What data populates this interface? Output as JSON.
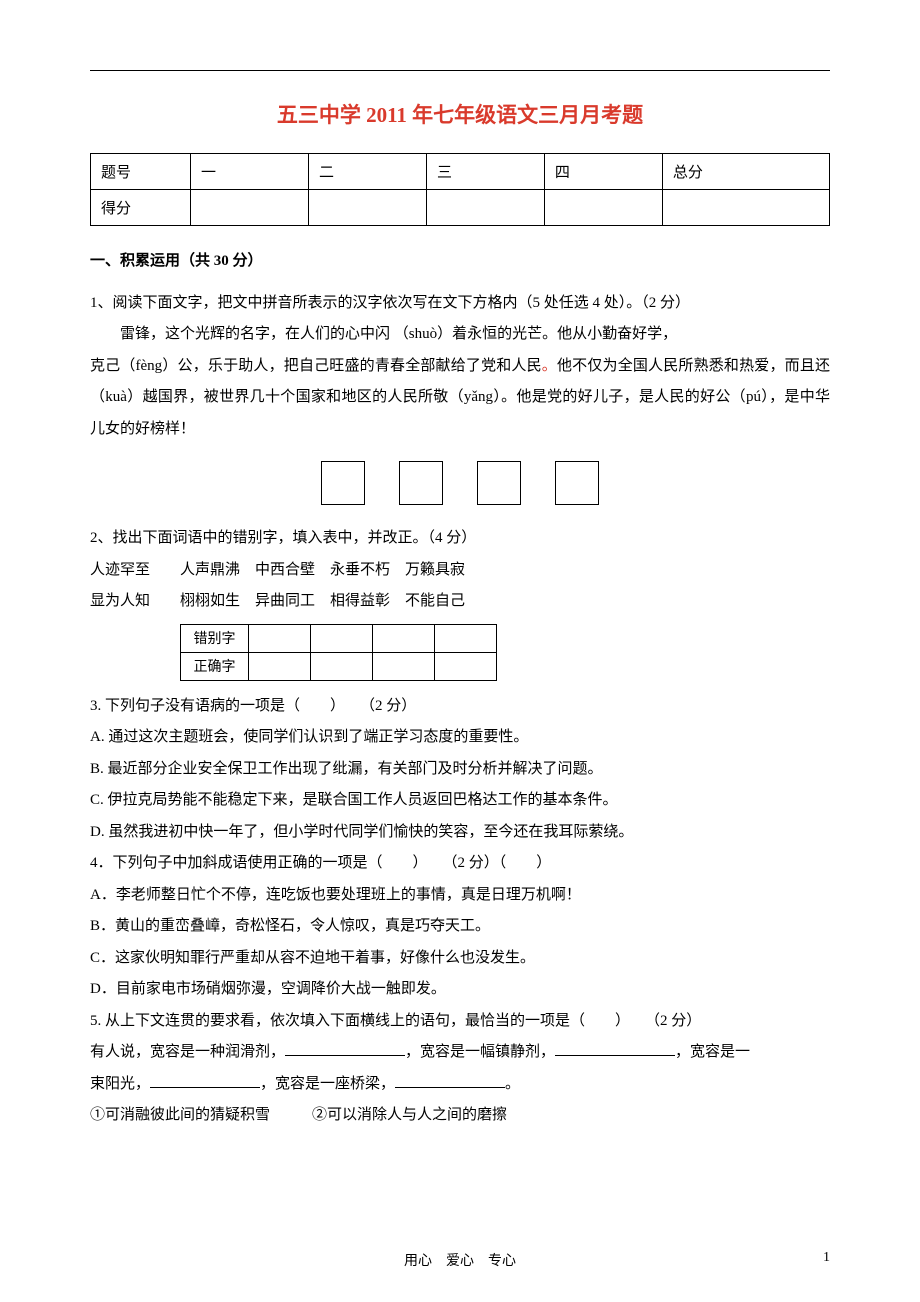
{
  "title": "五三中学 2011 年七年级语文三月月考题",
  "scoreTable": {
    "rowLabels": [
      "题号",
      "得分"
    ],
    "columns": [
      "一",
      "二",
      "三",
      "四",
      "总分"
    ]
  },
  "section1": {
    "heading": "一、积累运用（共 30 分）",
    "q1": {
      "prompt": "1、阅读下面文字，把文中拼音所表示的汉字依次写在文下方格内（5 处任选 4 处）。（2 分）",
      "para1a": "雷锋，这个光辉的名字，在人们的心中闪 （shuò）着永恒的光芒。他从小勤奋好学，",
      "para1b": "克己（fèng）公，乐于助人，把自己旺盛的青春全部献给了党和人民",
      "para1b_after": "他不仅为全国人民所熟悉和热爱，而且还（kuà）越国界，被世界几十个国家和地区的人民所敬（yǎng）。他是党的好儿子，是人民的好公（pú），是中华儿女的好榜样！"
    },
    "q2": {
      "prompt": "2、找出下面词语中的错别字，填入表中，并改正。（4 分）",
      "line1": "人迹罕至　　人声鼎沸　中西合壁　永垂不朽　万籁具寂",
      "line2": "显为人知　　栩栩如生　异曲同工　相得益彰　不能自己",
      "tableLabels": [
        "错别字",
        "正确字"
      ]
    },
    "q3": {
      "prompt": "3. 下列句子没有语病的一项是（　　）　　（2 分）",
      "A": "A. 通过这次主题班会，使同学们认识到了端正学习态度的重要性。",
      "B": "B. 最近部分企业安全保卫工作出现了纰漏，有关部门及时分析并解决了问题。",
      "C": "C. 伊拉克局势能不能稳定下来，是联合国工作人员返回巴格达工作的基本条件。",
      "D": "D. 虽然我进初中快一年了，但小学时代同学们愉快的笑容，至今还在我耳际萦绕。"
    },
    "q4": {
      "prompt": "4．下列句子中加斜成语使用正确的一项是（　　）　　（2 分）（　　）",
      "A": "A．李老师整日忙个不停，连吃饭也要处理班上的事情，真是日理万机啊！",
      "B": "B．黄山的重峦叠嶂，奇松怪石，令人惊叹，真是巧夺天工。",
      "C": "C．这家伙明知罪行严重却从容不迫地干着事，好像什么也没发生。",
      "D": "D．目前家电市场硝烟弥漫，空调降价大战一触即发。"
    },
    "q5": {
      "prompt": "5. 从上下文连贯的要求看，依次填入下面横线上的语句，最恰当的一项是（　　）　　（2 分）",
      "body1a": "有人说，宽容是一种润滑剂，",
      "body1b": "，宽容是一幅镇静剂，",
      "body1c": "，宽容是一",
      "body2a": "束阳光，",
      "body2b": "，宽容是一座桥梁，",
      "body2c": "。",
      "opt1": "①可消融彼此间的猜疑积雪",
      "opt2": "②可以消除人与人之间的磨擦"
    }
  },
  "footer": {
    "motto": "用心　爱心　专心",
    "page": "1"
  }
}
